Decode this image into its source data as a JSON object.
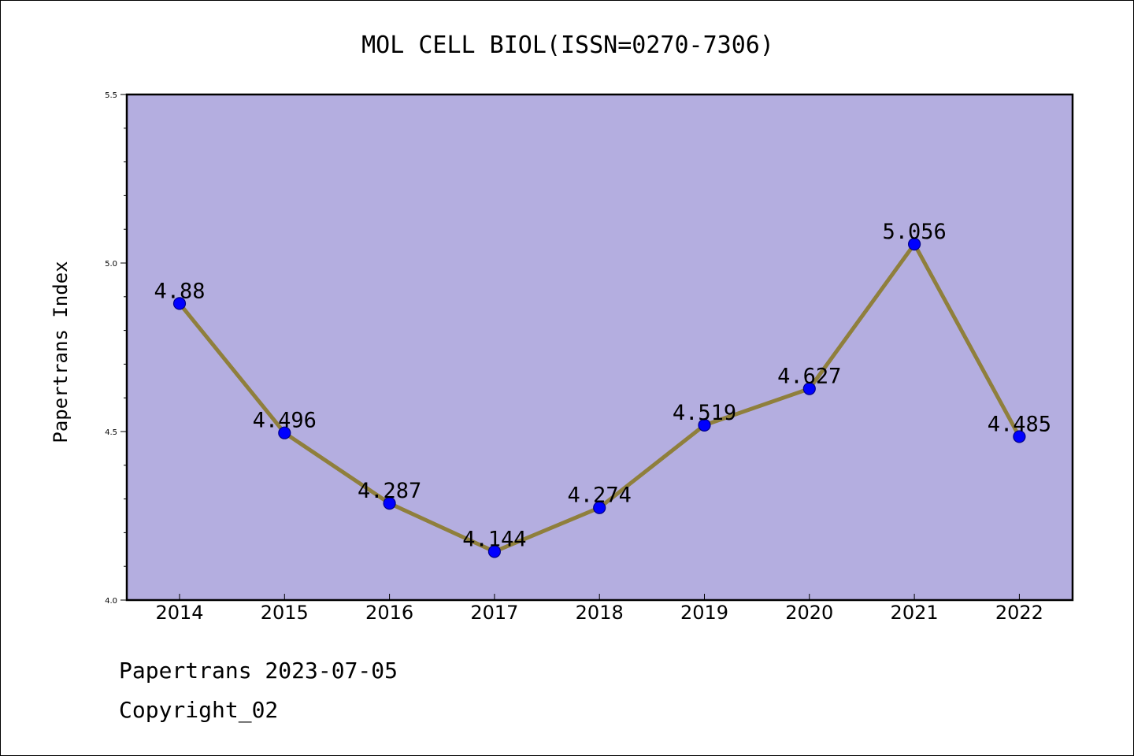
{
  "chart_data": {
    "type": "line",
    "title": "MOL CELL BIOL(ISSN=0270-7306)",
    "xlabel": "",
    "ylabel": "Papertrans Index",
    "categories": [
      "2014",
      "2015",
      "2016",
      "2017",
      "2018",
      "2019",
      "2020",
      "2021",
      "2022"
    ],
    "values": [
      4.88,
      4.496,
      4.287,
      4.144,
      4.274,
      4.519,
      4.627,
      5.056,
      4.485
    ],
    "data_labels": [
      "4.88",
      "4.496",
      "4.287",
      "4.144",
      "4.274",
      "4.519",
      "4.627",
      "5.056",
      "4.485"
    ],
    "ylim": [
      4.0,
      5.5
    ],
    "yticks": [
      4.0,
      4.5,
      5.0,
      5.5
    ],
    "ytick_labels": [
      "4.0",
      "4.5",
      "5.0",
      "5.5"
    ],
    "grid": false,
    "colors": {
      "plot_background": "#b4aee0",
      "line": "#8f7f3c",
      "marker": "#0000ff",
      "marker_edge": "#00008a"
    }
  },
  "footer": {
    "source": "Papertrans 2023-07-05",
    "copyright": "Copyright_02"
  }
}
